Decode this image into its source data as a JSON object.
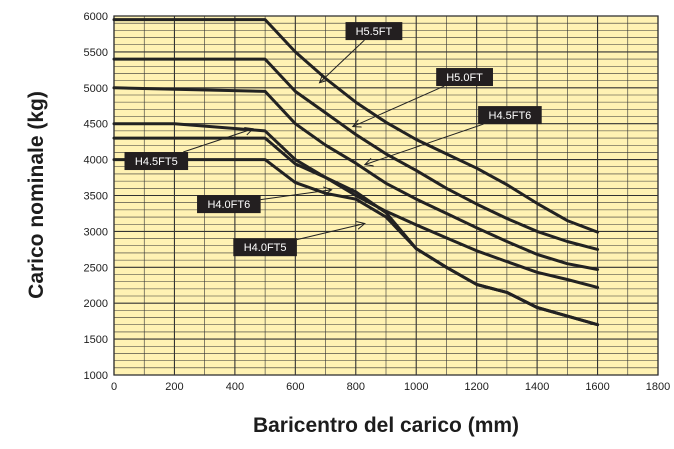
{
  "colors": {
    "plot_background": "#fff2b3",
    "line": "#222222",
    "grid": "#333333",
    "label_box": "#231f20",
    "label_text": "#ffffff"
  },
  "chart_data": {
    "type": "line",
    "title": "",
    "xlabel": "Baricentro del carico (mm)",
    "ylabel": "Carico nominale (kg)",
    "xlim": [
      0,
      1800
    ],
    "ylim": [
      1000,
      6000
    ],
    "x_ticks": [
      "0",
      "200",
      "400",
      "600",
      "800",
      "1000",
      "1200",
      "1400",
      "1600",
      "1800"
    ],
    "y_ticks": [
      "1000",
      "1500",
      "2000",
      "2500",
      "3000",
      "3500",
      "4000",
      "4500",
      "5000",
      "5500",
      "6000"
    ],
    "grid": true,
    "legend": "none",
    "series": [
      {
        "name": "H5.5FT",
        "points": [
          [
            0,
            5950
          ],
          [
            500,
            5950
          ],
          [
            600,
            5500
          ],
          [
            700,
            5130
          ],
          [
            800,
            4800
          ],
          [
            900,
            4520
          ],
          [
            1000,
            4280
          ],
          [
            1100,
            4080
          ],
          [
            1200,
            3880
          ],
          [
            1300,
            3650
          ],
          [
            1400,
            3390
          ],
          [
            1500,
            3150
          ],
          [
            1600,
            2990
          ]
        ]
      },
      {
        "name": "H5.0FT",
        "points": [
          [
            0,
            5400
          ],
          [
            500,
            5400
          ],
          [
            600,
            4950
          ],
          [
            700,
            4650
          ],
          [
            800,
            4350
          ],
          [
            900,
            4080
          ],
          [
            1000,
            3850
          ],
          [
            1100,
            3600
          ],
          [
            1200,
            3380
          ],
          [
            1300,
            3180
          ],
          [
            1400,
            3000
          ],
          [
            1500,
            2860
          ],
          [
            1600,
            2750
          ]
        ]
      },
      {
        "name": "H4.5FT6",
        "points": [
          [
            0,
            5000
          ],
          [
            500,
            4950
          ],
          [
            600,
            4500
          ],
          [
            700,
            4200
          ],
          [
            800,
            3950
          ],
          [
            900,
            3670
          ],
          [
            1000,
            3450
          ],
          [
            1100,
            3250
          ],
          [
            1200,
            3050
          ],
          [
            1300,
            2860
          ],
          [
            1400,
            2680
          ],
          [
            1500,
            2550
          ],
          [
            1600,
            2470
          ]
        ]
      },
      {
        "name": "H4.5FT5",
        "points": [
          [
            0,
            4500
          ],
          [
            200,
            4500
          ],
          [
            500,
            4400
          ],
          [
            600,
            4000
          ],
          [
            700,
            3750
          ],
          [
            800,
            3500
          ],
          [
            900,
            3280
          ],
          [
            1000,
            3090
          ],
          [
            1100,
            2910
          ],
          [
            1200,
            2730
          ],
          [
            1300,
            2580
          ],
          [
            1400,
            2430
          ],
          [
            1500,
            2330
          ],
          [
            1600,
            2220
          ]
        ]
      },
      {
        "name": "H4.0FT6",
        "points": [
          [
            0,
            4300
          ],
          [
            500,
            4300
          ],
          [
            600,
            3940
          ],
          [
            700,
            3750
          ],
          [
            800,
            3550
          ],
          [
            900,
            3260
          ],
          [
            1000,
            2760
          ],
          [
            1100,
            2500
          ],
          [
            1200,
            2260
          ],
          [
            1300,
            2150
          ],
          [
            1400,
            1940
          ],
          [
            1500,
            1820
          ],
          [
            1600,
            1700
          ]
        ]
      },
      {
        "name": "H4.0FT5",
        "points": [
          [
            0,
            4000
          ],
          [
            500,
            4000
          ],
          [
            600,
            3680
          ],
          [
            700,
            3530
          ],
          [
            800,
            3450
          ],
          [
            900,
            3200
          ],
          [
            1000,
            2760
          ],
          [
            1100,
            2500
          ],
          [
            1200,
            2260
          ],
          [
            1300,
            2150
          ],
          [
            1400,
            1940
          ],
          [
            1500,
            1820
          ],
          [
            1600,
            1700
          ]
        ]
      }
    ],
    "annotations": [
      {
        "label": "H5.5FT",
        "box": [
          860,
          5790
        ],
        "target": [
          680,
          5070
        ]
      },
      {
        "label": "H5.0FT",
        "box": [
          1160,
          5150
        ],
        "target": [
          790,
          4460
        ]
      },
      {
        "label": "H4.5FT6",
        "box": [
          1310,
          4620
        ],
        "target": [
          830,
          3930
        ]
      },
      {
        "label": "H4.5FT5",
        "box": [
          140,
          3980
        ],
        "target": [
          460,
          4430
        ]
      },
      {
        "label": "H4.0FT6",
        "box": [
          380,
          3380
        ],
        "target": [
          720,
          3580
        ]
      },
      {
        "label": "H4.0FT5",
        "box": [
          500,
          2780
        ],
        "target": [
          830,
          3110
        ]
      }
    ]
  }
}
